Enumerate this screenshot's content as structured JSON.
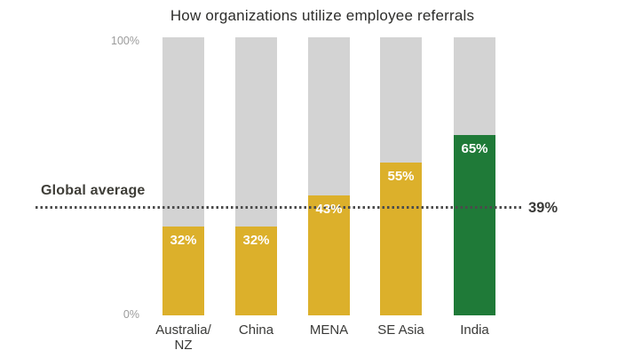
{
  "chart_data": {
    "type": "bar",
    "title": "How organizations utilize employee referrals",
    "categories": [
      "Australia/\nNZ",
      "China",
      "MENA",
      "SE Asia",
      "India"
    ],
    "values": [
      32,
      32,
      43,
      55,
      65
    ],
    "value_labels": [
      "32%",
      "32%",
      "43%",
      "55%",
      "65%"
    ],
    "bar_colors": [
      "#dcb02b",
      "#dcb02b",
      "#dcb02b",
      "#dcb02b",
      "#1f7a38"
    ],
    "remainder_color": "#d3d3d3",
    "ylim": [
      0,
      100
    ],
    "y_ticks": [
      "100%",
      "0%"
    ],
    "grid": "off",
    "legend": "none",
    "global_average": {
      "label": "Global average",
      "value": 39,
      "value_label": "39%"
    }
  }
}
